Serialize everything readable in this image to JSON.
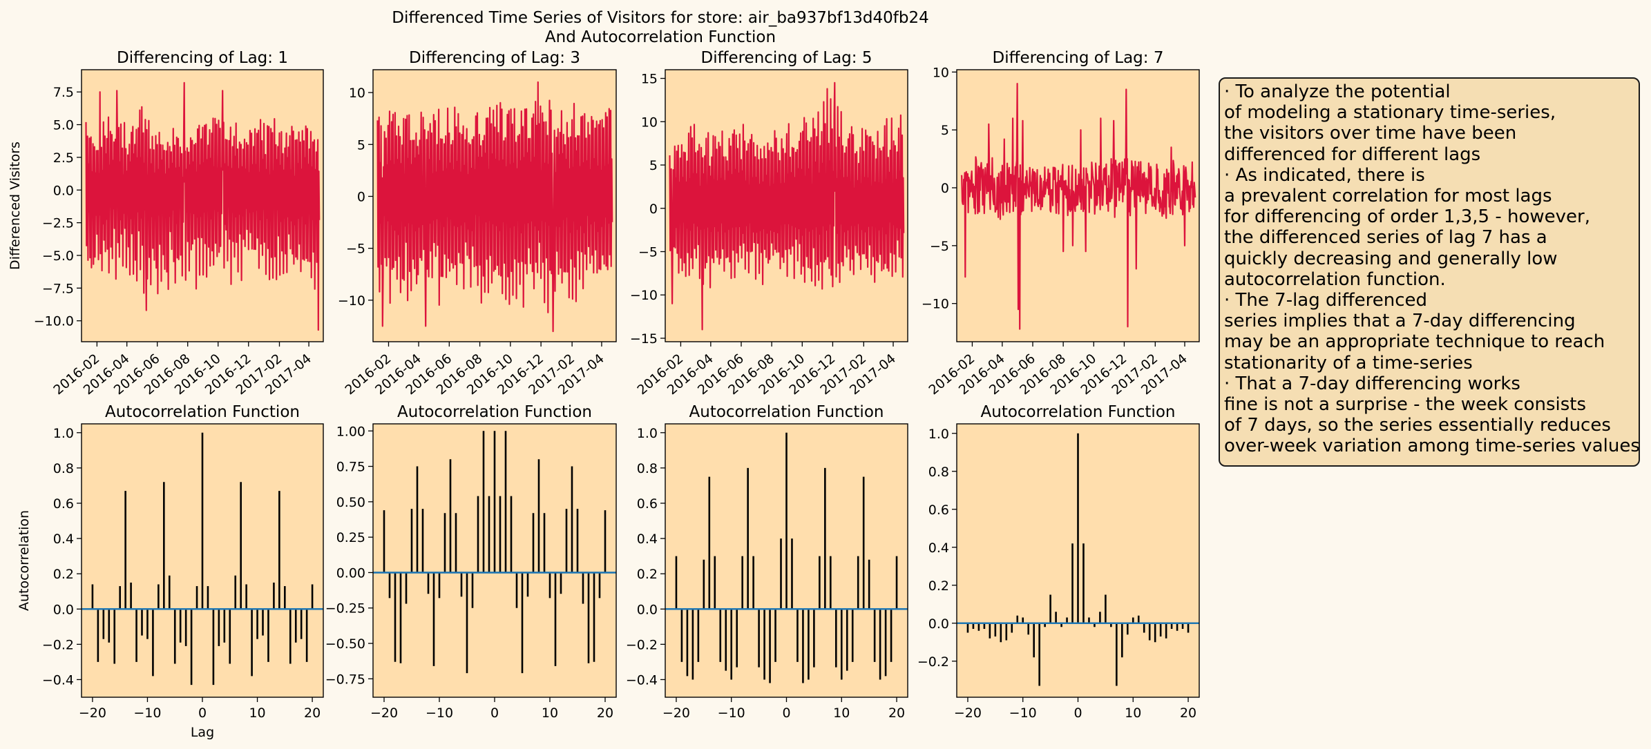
{
  "suptitle": [
    "Differenced Time Series of Visitors for store: air_ba937bf13d40fb24",
    "And Autocorrelation Function"
  ],
  "colors": {
    "figure_bg": "#fdf8ee",
    "axes_bg": "#ffdead",
    "series_line": "#dc143c",
    "acf_stem": "#000000",
    "acf_baseline": "#1f77b4",
    "note_bg": "#f5deb3"
  },
  "note_lines": [
    "· To analyze the potential",
    "of modeling a stationary time-series,",
    "the visitors over time have been",
    "differenced for different lags",
    "· As indicated, there is",
    "a prevalent correlation for most lags",
    "for differencing of order 1,3,5 - however,",
    "the differenced series of lag 7 has a",
    "quickly decreasing and generally low",
    "autocorrelation function.",
    "· The 7-lag differenced",
    "series implies that a 7-day differencing",
    "may be an appropriate technique to reach",
    "stationarity of a time-series",
    "· That a 7-day differencing works",
    "fine is not a surprise - the week consists",
    "of 7 days, so the series essentially reduces",
    "over-week variation among time-series values"
  ],
  "chart_data": [
    {
      "type": "line",
      "title": "Differencing of Lag: 1",
      "ylabel": "Differenced Visitors",
      "xlabel": "",
      "x_range": [
        "2016-01-01",
        "2017-04-30"
      ],
      "x_ticks": [
        "2016-02",
        "2016-04",
        "2016-06",
        "2016-08",
        "2016-10",
        "2016-12",
        "2017-02",
        "2017-04"
      ],
      "ylim": [
        -11.6,
        9.2
      ],
      "y_ticks": [
        -10.0,
        -7.5,
        -5.0,
        -2.5,
        0.0,
        2.5,
        5.0,
        7.5
      ],
      "y_tick_labels": [
        "−10.0",
        "−7.5",
        "−5.0",
        "−2.5",
        "0.0",
        "2.5",
        "5.0",
        "7.5"
      ],
      "envelope": [
        [
          "2016-01-01",
          -7.5,
          6.5
        ],
        [
          "2016-02-01",
          -7.5,
          5.0
        ],
        [
          "2016-03-01",
          -7.0,
          7.0
        ],
        [
          "2016-04-01",
          -7.0,
          5.0
        ],
        [
          "2016-05-01",
          -8.0,
          7.0
        ],
        [
          "2016-06-01",
          -8.5,
          4.5
        ],
        [
          "2016-07-01",
          -8.0,
          5.0
        ],
        [
          "2016-08-01",
          -7.5,
          4.5
        ],
        [
          "2016-09-01",
          -7.5,
          6.0
        ],
        [
          "2016-10-01",
          -7.5,
          6.5
        ],
        [
          "2016-11-01",
          -7.5,
          5.5
        ],
        [
          "2016-12-01",
          -7.0,
          6.0
        ],
        [
          "2017-01-01",
          -7.5,
          5.5
        ],
        [
          "2017-02-01",
          -7.0,
          5.5
        ],
        [
          "2017-03-01",
          -7.5,
          5.5
        ],
        [
          "2017-04-25",
          -8.0,
          5.5
        ]
      ],
      "extremes": [
        [
          "2016-05-10",
          -9.2
        ],
        [
          "2016-07-25",
          8.2
        ],
        [
          "2016-03-12",
          7.6
        ],
        [
          "2016-10-10",
          7.6
        ],
        [
          "2017-04-20",
          -10.7
        ],
        [
          "2016-02-07",
          7.5
        ]
      ]
    },
    {
      "type": "line",
      "title": "Differencing of Lag: 3",
      "ylabel": "",
      "xlabel": "",
      "x_range": [
        "2016-01-01",
        "2017-04-30"
      ],
      "x_ticks": [
        "2016-02",
        "2016-04",
        "2016-06",
        "2016-08",
        "2016-10",
        "2016-12",
        "2017-02",
        "2017-04"
      ],
      "ylim": [
        -14.0,
        12.2
      ],
      "y_ticks": [
        -10,
        -5,
        0,
        5,
        10
      ],
      "y_tick_labels": [
        "−10",
        "−5",
        "0",
        "5",
        "10"
      ],
      "envelope": [
        [
          "2016-01-01",
          -11.0,
          9.0
        ],
        [
          "2016-02-01",
          -10.5,
          9.5
        ],
        [
          "2016-03-01",
          -11.0,
          9.5
        ],
        [
          "2016-04-01",
          -11.0,
          9.0
        ],
        [
          "2016-05-01",
          -10.5,
          9.0
        ],
        [
          "2016-06-01",
          -11.0,
          9.5
        ],
        [
          "2016-07-01",
          -10.0,
          9.0
        ],
        [
          "2016-08-01",
          -10.5,
          9.0
        ],
        [
          "2016-09-01",
          -11.0,
          10.0
        ],
        [
          "2016-10-01",
          -11.0,
          9.5
        ],
        [
          "2016-11-01",
          -10.5,
          9.5
        ],
        [
          "2016-12-01",
          -11.5,
          10.5
        ],
        [
          "2017-01-01",
          -11.5,
          10.0
        ],
        [
          "2017-02-01",
          -11.0,
          10.0
        ],
        [
          "2017-03-01",
          -11.0,
          9.5
        ],
        [
          "2017-04-25",
          -10.5,
          9.5
        ]
      ],
      "extremes": [
        [
          "2016-01-20",
          -12.5
        ],
        [
          "2016-04-15",
          -12.5
        ],
        [
          "2016-11-25",
          11.0
        ],
        [
          "2016-12-25",
          -13.0
        ]
      ]
    },
    {
      "type": "line",
      "title": "Differencing of Lag: 5",
      "ylabel": "",
      "xlabel": "",
      "x_range": [
        "2016-01-01",
        "2017-04-30"
      ],
      "x_ticks": [
        "2016-02",
        "2016-04",
        "2016-06",
        "2016-08",
        "2016-10",
        "2016-12",
        "2017-02",
        "2017-04"
      ],
      "ylim": [
        -15.4,
        16.0
      ],
      "y_ticks": [
        -15,
        -10,
        -5,
        0,
        5,
        10,
        15
      ],
      "y_tick_labels": [
        "−15",
        "−10",
        "−5",
        "0",
        "5",
        "10",
        "15"
      ],
      "envelope": [
        [
          "2016-01-01",
          -7.0,
          6.0
        ],
        [
          "2016-02-01",
          -8.0,
          10.0
        ],
        [
          "2016-03-01",
          -9.0,
          11.0
        ],
        [
          "2016-04-01",
          -10.0,
          10.0
        ],
        [
          "2016-05-01",
          -9.0,
          11.0
        ],
        [
          "2016-06-01",
          -9.0,
          10.0
        ],
        [
          "2016-07-01",
          -8.5,
          9.5
        ],
        [
          "2016-08-01",
          -9.0,
          10.0
        ],
        [
          "2016-09-01",
          -8.5,
          11.0
        ],
        [
          "2016-10-01",
          -9.0,
          12.0
        ],
        [
          "2016-11-01",
          -10.0,
          13.0
        ],
        [
          "2016-12-01",
          -10.0,
          13.5
        ],
        [
          "2017-01-01",
          -8.0,
          10.0
        ],
        [
          "2017-02-01",
          -8.0,
          10.0
        ],
        [
          "2017-03-01",
          -9.0,
          11.0
        ],
        [
          "2017-04-25",
          -9.0,
          12.0
        ]
      ],
      "extremes": [
        [
          "2016-03-15",
          -14.0
        ],
        [
          "2016-12-05",
          14.5
        ],
        [
          "2016-01-15",
          -11.0
        ],
        [
          "2016-11-20",
          13.8
        ]
      ]
    },
    {
      "type": "line",
      "title": "Differencing of Lag: 7",
      "ylabel": "",
      "xlabel": "",
      "x_range": [
        "2016-01-01",
        "2017-04-30"
      ],
      "x_ticks": [
        "2016-02",
        "2016-04",
        "2016-06",
        "2016-08",
        "2016-10",
        "2016-12",
        "2017-02",
        "2017-04"
      ],
      "ylim": [
        -13.3,
        10.2
      ],
      "y_ticks": [
        -10,
        -5,
        0,
        5,
        10
      ],
      "y_tick_labels": [
        "−10",
        "−5",
        "0",
        "5",
        "10"
      ],
      "envelope": [
        [
          "2016-01-01",
          -1.0,
          1.0
        ],
        [
          "2016-02-01",
          -2.5,
          3.0
        ],
        [
          "2016-03-01",
          -2.5,
          3.0
        ],
        [
          "2016-04-01",
          -2.5,
          3.0
        ],
        [
          "2016-05-01",
          -2.5,
          3.0
        ],
        [
          "2016-06-01",
          -2.0,
          2.0
        ],
        [
          "2016-07-01",
          -2.0,
          2.0
        ],
        [
          "2016-08-01",
          -2.5,
          2.5
        ],
        [
          "2016-09-01",
          -2.0,
          2.5
        ],
        [
          "2016-10-01",
          -2.0,
          2.5
        ],
        [
          "2016-11-01",
          -2.5,
          2.5
        ],
        [
          "2016-12-01",
          -2.5,
          3.0
        ],
        [
          "2017-01-01",
          -2.0,
          2.5
        ],
        [
          "2017-02-01",
          -2.0,
          2.5
        ],
        [
          "2017-03-01",
          -2.5,
          3.0
        ],
        [
          "2017-04-25",
          -2.0,
          2.5
        ]
      ],
      "extremes": [
        [
          "2016-01-18",
          -7.7
        ],
        [
          "2016-03-05",
          5.5
        ],
        [
          "2016-04-05",
          4.2
        ],
        [
          "2016-04-22",
          6.0
        ],
        [
          "2016-05-01",
          9.0
        ],
        [
          "2016-05-03",
          -10.5
        ],
        [
          "2016-05-06",
          -12.2
        ],
        [
          "2016-05-12",
          5.8
        ],
        [
          "2016-08-01",
          -5.5
        ],
        [
          "2016-08-20",
          -5.0
        ],
        [
          "2016-09-05",
          5.0
        ],
        [
          "2016-09-15",
          -5.5
        ],
        [
          "2016-10-15",
          6.0
        ],
        [
          "2016-11-10",
          5.8
        ],
        [
          "2016-12-05",
          8.5
        ],
        [
          "2016-12-08",
          -12.0
        ],
        [
          "2016-12-25",
          -7.0
        ],
        [
          "2017-03-05",
          3.5
        ],
        [
          "2017-04-01",
          -5.0
        ]
      ]
    },
    {
      "type": "bar",
      "title": "Autocorrelation Function",
      "ylabel": "Autocorrelation",
      "xlabel": "Lag",
      "xlim": [
        -22,
        22
      ],
      "x_ticks": [
        -20,
        -10,
        0,
        10,
        20
      ],
      "x_tick_labels": [
        "−20",
        "−10",
        "0",
        "10",
        "20"
      ],
      "ylim": [
        -0.5,
        1.05
      ],
      "y_ticks": [
        -0.4,
        -0.2,
        0.0,
        0.2,
        0.4,
        0.6,
        0.8,
        1.0
      ],
      "y_tick_labels": [
        "−0.4",
        "−0.2",
        "0.0",
        "0.2",
        "0.4",
        "0.6",
        "0.8",
        "1.0"
      ],
      "lags": [
        -20,
        -19,
        -18,
        -17,
        -16,
        -15,
        -14,
        -13,
        -12,
        -11,
        -10,
        -9,
        -8,
        -7,
        -6,
        -5,
        -4,
        -3,
        -2,
        -1,
        0,
        1,
        2,
        3,
        4,
        5,
        6,
        7,
        8,
        9,
        10,
        11,
        12,
        13,
        14,
        15,
        16,
        17,
        18,
        19,
        20
      ],
      "values": [
        0.14,
        -0.3,
        -0.17,
        -0.19,
        -0.31,
        0.13,
        0.67,
        0.15,
        -0.3,
        -0.15,
        -0.17,
        -0.38,
        0.14,
        0.72,
        0.19,
        -0.31,
        -0.19,
        -0.21,
        -0.43,
        0.13,
        1.0,
        0.13,
        -0.43,
        -0.21,
        -0.19,
        -0.31,
        0.19,
        0.72,
        0.14,
        -0.38,
        -0.17,
        -0.15,
        -0.3,
        0.15,
        0.67,
        0.13,
        -0.31,
        -0.19,
        -0.17,
        -0.3,
        0.14
      ]
    },
    {
      "type": "bar",
      "title": "Autocorrelation Function",
      "ylabel": "",
      "xlabel": "",
      "xlim": [
        -22,
        22
      ],
      "x_ticks": [
        -20,
        -10,
        0,
        10,
        20
      ],
      "x_tick_labels": [
        "−20",
        "−10",
        "0",
        "10",
        "20"
      ],
      "ylim": [
        -0.88,
        1.05
      ],
      "y_ticks": [
        -0.75,
        -0.5,
        -0.25,
        0.0,
        0.25,
        0.5,
        0.75,
        1.0
      ],
      "y_tick_labels": [
        "−0.75",
        "−0.50",
        "−0.25",
        "0.00",
        "0.25",
        "0.50",
        "0.75",
        "1.00"
      ],
      "lags": [
        -20,
        -19,
        -18,
        -17,
        -16,
        -15,
        -14,
        -13,
        -12,
        -11,
        -10,
        -9,
        -8,
        -7,
        -6,
        -5,
        -4,
        -3,
        -2,
        -1,
        0,
        1,
        2,
        3,
        4,
        5,
        6,
        7,
        8,
        9,
        10,
        11,
        12,
        13,
        14,
        15,
        16,
        17,
        18,
        19,
        20
      ],
      "values": [
        0.44,
        -0.18,
        -0.63,
        -0.64,
        -0.22,
        0.45,
        0.75,
        0.45,
        -0.15,
        -0.66,
        -0.18,
        0.42,
        0.8,
        0.42,
        -0.17,
        -0.71,
        -0.25,
        0.54,
        1.0,
        0.54,
        1.0,
        0.54,
        1.0,
        0.54,
        -0.25,
        -0.71,
        -0.17,
        0.42,
        0.8,
        0.42,
        -0.18,
        -0.66,
        -0.15,
        0.45,
        0.75,
        0.45,
        -0.22,
        -0.64,
        -0.63,
        -0.18,
        0.44
      ]
    },
    {
      "type": "bar",
      "title": "Autocorrelation Function",
      "ylabel": "",
      "xlabel": "",
      "xlim": [
        -22,
        22
      ],
      "x_ticks": [
        -20,
        -10,
        0,
        10,
        20
      ],
      "x_tick_labels": [
        "−20",
        "−10",
        "0",
        "10",
        "20"
      ],
      "ylim": [
        -0.5,
        1.05
      ],
      "y_ticks": [
        -0.4,
        -0.2,
        0.0,
        0.2,
        0.4,
        0.6,
        0.8,
        1.0
      ],
      "y_tick_labels": [
        "−0.4",
        "−0.2",
        "0.0",
        "0.2",
        "0.4",
        "0.6",
        "0.8",
        "1.0"
      ],
      "lags": [
        -20,
        -19,
        -18,
        -17,
        -16,
        -15,
        -14,
        -13,
        -12,
        -11,
        -10,
        -9,
        -8,
        -7,
        -6,
        -5,
        -4,
        -3,
        -2,
        -1,
        0,
        1,
        2,
        3,
        4,
        5,
        6,
        7,
        8,
        9,
        10,
        11,
        12,
        13,
        14,
        15,
        16,
        17,
        18,
        19,
        20
      ],
      "values": [
        0.3,
        -0.3,
        -0.38,
        -0.4,
        -0.3,
        0.28,
        0.75,
        0.3,
        -0.3,
        -0.35,
        -0.4,
        -0.33,
        0.3,
        0.8,
        0.3,
        -0.33,
        -0.4,
        -0.42,
        -0.3,
        0.4,
        1.0,
        0.4,
        -0.3,
        -0.42,
        -0.4,
        -0.33,
        0.3,
        0.8,
        0.3,
        -0.33,
        -0.4,
        -0.35,
        -0.3,
        0.3,
        0.75,
        0.28,
        -0.3,
        -0.4,
        -0.38,
        -0.3,
        0.3
      ]
    },
    {
      "type": "bar",
      "title": "Autocorrelation Function",
      "ylabel": "",
      "xlabel": "",
      "xlim": [
        -22,
        22
      ],
      "x_ticks": [
        -20,
        -10,
        0,
        10,
        20
      ],
      "x_tick_labels": [
        "−20",
        "−10",
        "0",
        "10",
        "20"
      ],
      "ylim": [
        -0.39,
        1.05
      ],
      "y_ticks": [
        -0.2,
        0.0,
        0.2,
        0.4,
        0.6,
        0.8,
        1.0
      ],
      "y_tick_labels": [
        "−0.2",
        "0.0",
        "0.2",
        "0.4",
        "0.6",
        "0.8",
        "1.0"
      ],
      "lags": [
        -20,
        -19,
        -18,
        -17,
        -16,
        -15,
        -14,
        -13,
        -12,
        -11,
        -10,
        -9,
        -8,
        -7,
        -6,
        -5,
        -4,
        -3,
        -2,
        -1,
        0,
        1,
        2,
        3,
        4,
        5,
        6,
        7,
        8,
        9,
        10,
        11,
        12,
        13,
        14,
        15,
        16,
        17,
        18,
        19,
        20
      ],
      "values": [
        -0.05,
        -0.03,
        -0.04,
        -0.03,
        -0.08,
        -0.07,
        -0.1,
        -0.09,
        -0.05,
        0.04,
        0.03,
        -0.06,
        -0.18,
        -0.33,
        -0.02,
        0.15,
        0.06,
        -0.02,
        0.03,
        0.42,
        1.0,
        0.42,
        0.03,
        -0.02,
        0.06,
        0.15,
        -0.02,
        -0.33,
        -0.18,
        -0.06,
        0.03,
        0.04,
        -0.05,
        -0.09,
        -0.1,
        -0.07,
        -0.08,
        -0.03,
        -0.04,
        -0.03,
        -0.05
      ]
    }
  ]
}
